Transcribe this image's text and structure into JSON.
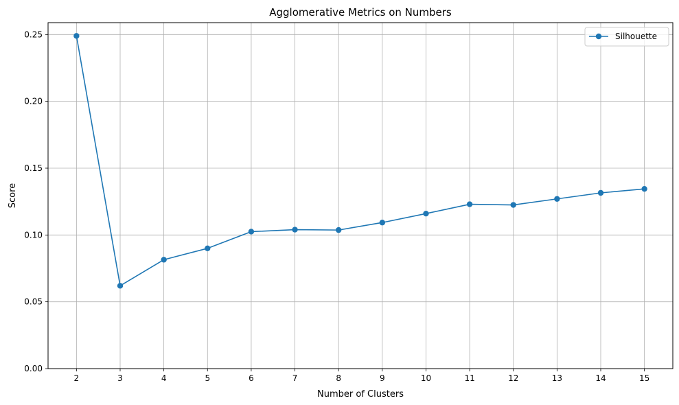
{
  "chart_data": {
    "type": "line",
    "title": "Agglomerative Metrics on Numbers",
    "xlabel": "Number of Clusters",
    "ylabel": "Score",
    "x": [
      2,
      3,
      4,
      5,
      6,
      7,
      8,
      9,
      10,
      11,
      12,
      13,
      14,
      15
    ],
    "series": [
      {
        "name": "Silhouette",
        "color": "#1f77b4",
        "marker": "circle",
        "values": [
          0.249,
          0.062,
          0.0815,
          0.09,
          0.1025,
          0.104,
          0.1037,
          0.1093,
          0.116,
          0.123,
          0.1225,
          0.127,
          0.1315,
          0.1345
        ]
      }
    ],
    "xticks": [
      "2",
      "3",
      "4",
      "5",
      "6",
      "7",
      "8",
      "9",
      "10",
      "11",
      "12",
      "13",
      "14",
      "15"
    ],
    "yticks": [
      0.0,
      0.05,
      0.1,
      0.15,
      0.2,
      0.25
    ],
    "ytick_labels": [
      "0.00",
      "0.05",
      "0.10",
      "0.15",
      "0.20",
      "0.25"
    ],
    "xlim": [
      1.35,
      15.65
    ],
    "ylim": [
      0,
      0.2589
    ],
    "grid": true,
    "legend_position": "upper right"
  }
}
